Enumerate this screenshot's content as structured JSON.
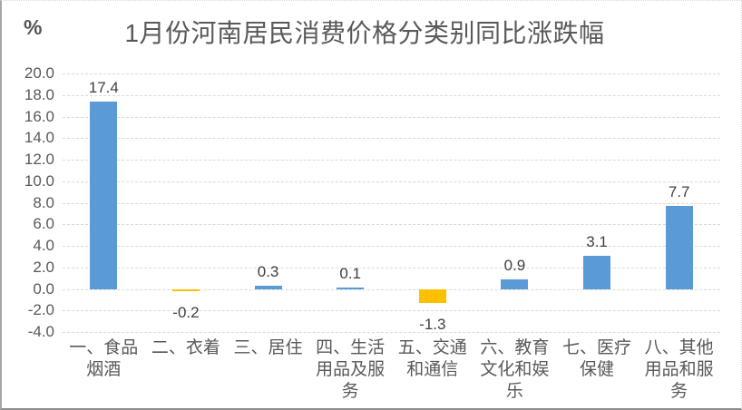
{
  "chart_data": {
    "type": "bar",
    "title": "1月份河南居民消费价格分类别同比涨跌幅",
    "unit_label": "%",
    "categories": [
      "一、食品烟酒",
      "二、衣着",
      "三、居住",
      "四、生活用品及服务",
      "五、交通和通信",
      "六、教育文化和娱乐",
      "七、医疗保健",
      "八、其他用品和服务"
    ],
    "values": [
      17.4,
      -0.2,
      0.3,
      0.1,
      -1.3,
      0.9,
      3.1,
      7.7
    ],
    "data_labels": [
      "17.4",
      "-0.2",
      "0.3",
      "0.1",
      "-1.3",
      "0.9",
      "3.1",
      "7.7"
    ],
    "ylim": [
      -4.0,
      20.0
    ],
    "ytick_step": 2.0,
    "yticks": [
      {
        "value": 20,
        "label": "20.0"
      },
      {
        "value": 18,
        "label": "18.0"
      },
      {
        "value": 16,
        "label": "16.0"
      },
      {
        "value": 14,
        "label": "14.0"
      },
      {
        "value": 12,
        "label": "12.0"
      },
      {
        "value": 10,
        "label": "10.0"
      },
      {
        "value": 8,
        "label": "8.0"
      },
      {
        "value": 6,
        "label": "6.0"
      },
      {
        "value": 4,
        "label": "4.0"
      },
      {
        "value": 2,
        "label": "2.0"
      },
      {
        "value": 0,
        "label": "0.0"
      },
      {
        "value": -2,
        "label": "-2.0"
      },
      {
        "value": -4,
        "label": "-4.0"
      }
    ],
    "grid": true,
    "legend": false,
    "xlabel": "",
    "ylabel": "%",
    "colors": {
      "positive_bar": "#5b9bd5",
      "negative_bar": "#ffc000",
      "grid_line": "#d9d9d9",
      "axis_text": "#595959",
      "value_label_text": "#404040"
    }
  }
}
